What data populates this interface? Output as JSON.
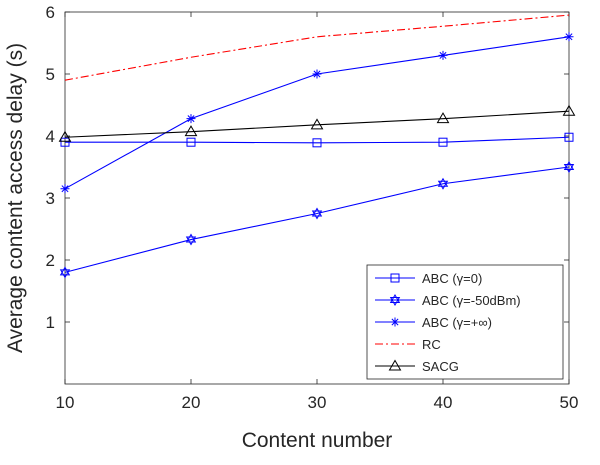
{
  "chart_data": {
    "type": "line",
    "xlabel": "Content number",
    "ylabel": "Average content access delay (s)",
    "xlim": [
      10,
      50
    ],
    "ylim": [
      0,
      6
    ],
    "x": [
      10,
      20,
      30,
      40,
      50
    ],
    "xticks": [
      "10",
      "20",
      "30",
      "40",
      "50"
    ],
    "yticks": [
      "1",
      "2",
      "3",
      "4",
      "5",
      "6"
    ],
    "grid": false,
    "legend_position": "bottom-right",
    "series": [
      {
        "name": "ABC (γ=0)",
        "color": "#0000ff",
        "marker": "square",
        "line_style": "solid",
        "values": [
          3.9,
          3.9,
          3.89,
          3.9,
          3.98
        ]
      },
      {
        "name": "ABC (γ=-50dBm)",
        "color": "#0000ff",
        "marker": "hexagram",
        "line_style": "solid",
        "values": [
          1.8,
          2.33,
          2.75,
          3.23,
          3.5
        ]
      },
      {
        "name": "ABC (γ=+∞)",
        "color": "#0000ff",
        "marker": "asterisk",
        "line_style": "solid",
        "values": [
          3.15,
          4.28,
          5.0,
          5.3,
          5.6
        ]
      },
      {
        "name": "RC",
        "color": "#ff0000",
        "marker": "none",
        "line_style": "dash-dot",
        "values": [
          4.9,
          5.27,
          5.6,
          5.77,
          5.95
        ]
      },
      {
        "name": "SACG",
        "color": "#000000",
        "marker": "triangle",
        "line_style": "solid",
        "values": [
          3.98,
          4.07,
          4.18,
          4.28,
          4.4
        ]
      }
    ]
  }
}
